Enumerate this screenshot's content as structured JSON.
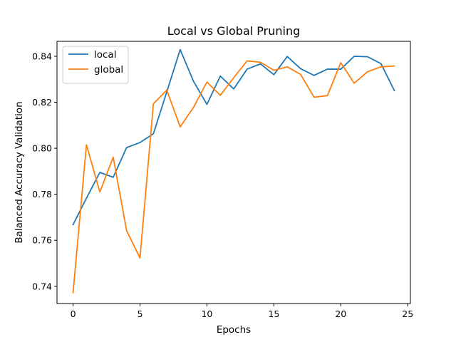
{
  "chart_data": {
    "type": "line",
    "title": "Local vs Global Pruning",
    "xlabel": "Epochs",
    "ylabel": "Balanced Accuracy Validation",
    "xlim": [
      -1.2,
      25.2
    ],
    "ylim": [
      0.7325,
      0.8465
    ],
    "xticks": [
      0,
      5,
      10,
      15,
      20,
      25
    ],
    "yticks": [
      0.74,
      0.76,
      0.78,
      0.8,
      0.82,
      0.84
    ],
    "ytick_labels": [
      "0.74",
      "0.76",
      "0.78",
      "0.80",
      "0.82",
      "0.84"
    ],
    "grid": false,
    "legend_position": "top-left",
    "x": [
      0,
      1,
      2,
      3,
      4,
      5,
      6,
      7,
      8,
      9,
      10,
      11,
      12,
      13,
      14,
      15,
      16,
      17,
      18,
      19,
      20,
      21,
      22,
      23,
      24
    ],
    "series": [
      {
        "name": "local",
        "color": "#1f77b4",
        "values": [
          0.7668,
          0.7783,
          0.7895,
          0.7874,
          0.8003,
          0.8025,
          0.8063,
          0.8245,
          0.8429,
          0.8291,
          0.8191,
          0.8314,
          0.8258,
          0.8344,
          0.8367,
          0.832,
          0.8399,
          0.8346,
          0.8317,
          0.8344,
          0.8344,
          0.84,
          0.8398,
          0.8368,
          0.8251
        ]
      },
      {
        "name": "global",
        "color": "#ff7f0e",
        "values": [
          0.7372,
          0.8015,
          0.781,
          0.7961,
          0.7642,
          0.7523,
          0.8193,
          0.8253,
          0.8093,
          0.8178,
          0.8288,
          0.823,
          0.8307,
          0.838,
          0.8374,
          0.8339,
          0.8354,
          0.8321,
          0.8222,
          0.8229,
          0.8372,
          0.8283,
          0.8333,
          0.8354,
          0.8358
        ]
      }
    ]
  }
}
